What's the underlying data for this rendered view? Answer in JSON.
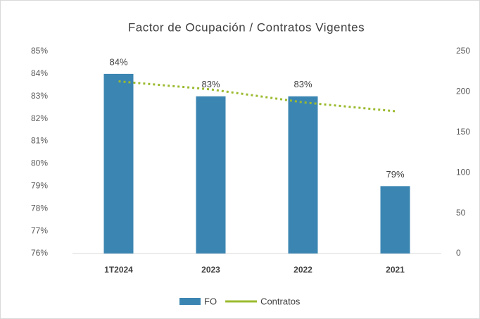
{
  "chart_data": {
    "type": "bar",
    "title": "Factor de Ocupación / Contratos Vigentes",
    "categories": [
      "1T2024",
      "2023",
      "2022",
      "2021"
    ],
    "series": [
      {
        "name": "FO",
        "type": "bar",
        "color": "#3b85b2",
        "values": [
          84,
          83,
          83,
          79
        ],
        "value_labels": [
          "84%",
          "83%",
          "83%",
          "79%"
        ]
      },
      {
        "name": "Contratos",
        "type": "line",
        "color": "#9bbb2f",
        "axis": "y2",
        "dashed": true,
        "values": [
          213,
          203,
          187,
          176
        ]
      }
    ],
    "ylim": [
      76,
      85
    ],
    "yticks": [
      {
        "value": 76,
        "label": "76%"
      },
      {
        "value": 77,
        "label": "77%"
      },
      {
        "value": 78,
        "label": "78%"
      },
      {
        "value": 79,
        "label": "79%"
      },
      {
        "value": 80,
        "label": "80%"
      },
      {
        "value": 81,
        "label": "81%"
      },
      {
        "value": 82,
        "label": "82%"
      },
      {
        "value": 83,
        "label": "83%"
      },
      {
        "value": 84,
        "label": "84%"
      },
      {
        "value": 85,
        "label": "85%"
      }
    ],
    "y2lim": [
      0,
      250
    ],
    "y2ticks": [
      0,
      50,
      100,
      150,
      200,
      250
    ],
    "grid": false,
    "legend": "bottom"
  }
}
